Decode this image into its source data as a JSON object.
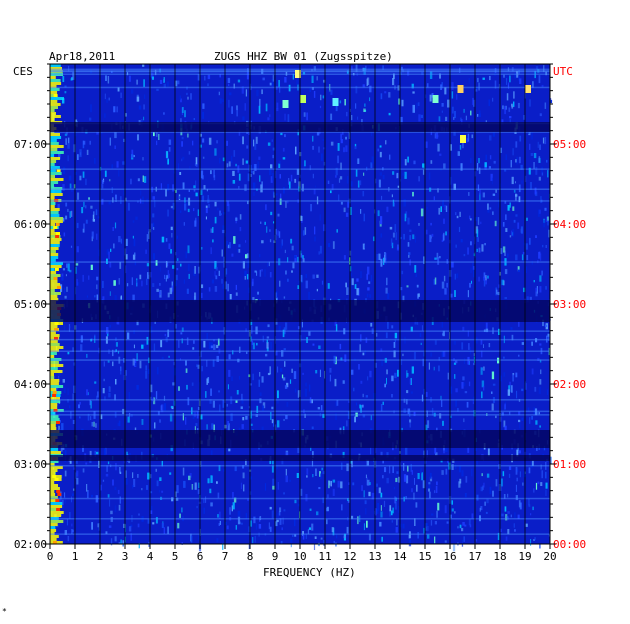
{
  "header": {
    "date": "Apr18,2011",
    "station": "ZUGS HHZ BW 01 (Zugsspitze)"
  },
  "chart_data": {
    "type": "heatmap",
    "title": "ZUGS HHZ BW 01 (Zugsspitze)",
    "xlabel": "FREQUENCY (HZ)",
    "x_ticks": [
      "0",
      "1",
      "2",
      "3",
      "4",
      "5",
      "6",
      "7",
      "8",
      "9",
      "10",
      "11",
      "12",
      "13",
      "14",
      "15",
      "16",
      "17",
      "18",
      "19",
      "20"
    ],
    "xlim": [
      0,
      20
    ],
    "left_axis_label": "CES",
    "left_ticks": [
      "07:00",
      "06:00",
      "05:00",
      "04:00",
      "03:00",
      "02:00"
    ],
    "right_axis_label": "UTC",
    "right_ticks": [
      "05:00",
      "04:00",
      "03:00",
      "02:00",
      "01:00",
      "00:00"
    ],
    "time_range_ces": [
      "02:00",
      "07:48"
    ],
    "grid": true,
    "colors": {
      "background": "#0a1ec8",
      "dark_band": "#02045e",
      "grid": "#000000",
      "utc_label": "#ff0000",
      "axis_text": "#000000"
    }
  },
  "footer": {
    "mark": "*"
  }
}
